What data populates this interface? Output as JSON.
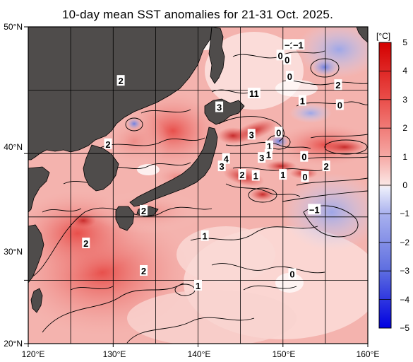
{
  "title": "10-day mean SST anomalies for 21-31 Oct. 2025.",
  "axes": {
    "lat_labels": [
      "50°N",
      "40°N",
      "30°N",
      "20°N"
    ],
    "lon_labels": [
      "120°E",
      "130°E",
      "140°E",
      "150°E",
      "160°E"
    ]
  },
  "colorbar": {
    "unit": "[°C]",
    "ticks": [
      "5",
      "4",
      "3",
      "2",
      "1",
      "0",
      "−1",
      "−2",
      "−3",
      "−4",
      "−5"
    ]
  },
  "contour_labels": [
    {
      "text": "−1",
      "lon": 150.8,
      "lat": 48.3
    },
    {
      "text": "−1",
      "lon": 151.8,
      "lat": 48.3
    },
    {
      "text": "0",
      "lon": 149.7,
      "lat": 47.3
    },
    {
      "text": "0",
      "lon": 150.5,
      "lat": 46.9
    },
    {
      "text": "0",
      "lon": 150.8,
      "lat": 45.3
    },
    {
      "text": "2",
      "lon": 156.5,
      "lat": 44.5
    },
    {
      "text": "2",
      "lon": 130.9,
      "lat": 44.9
    },
    {
      "text": "11",
      "lon": 146.6,
      "lat": 43.7
    },
    {
      "text": "1",
      "lon": 152.3,
      "lat": 43.0
    },
    {
      "text": "0",
      "lon": 156.7,
      "lat": 42.6
    },
    {
      "text": "3",
      "lon": 142.5,
      "lat": 42.4
    },
    {
      "text": "3",
      "lon": 146.3,
      "lat": 39.8
    },
    {
      "text": "0",
      "lon": 149.5,
      "lat": 40.0
    },
    {
      "text": "2",
      "lon": 129.4,
      "lat": 38.9
    },
    {
      "text": "1",
      "lon": 148.4,
      "lat": 38.7
    },
    {
      "text": "1",
      "lon": 148.3,
      "lat": 37.9
    },
    {
      "text": "4",
      "lon": 143.3,
      "lat": 37.5
    },
    {
      "text": "3",
      "lon": 147.5,
      "lat": 37.6
    },
    {
      "text": "0",
      "lon": 152.5,
      "lat": 37.7
    },
    {
      "text": "3",
      "lon": 142.8,
      "lat": 36.8
    },
    {
      "text": "2",
      "lon": 155.1,
      "lat": 36.8
    },
    {
      "text": "2",
      "lon": 145.2,
      "lat": 36.0
    },
    {
      "text": "1",
      "lon": 146.8,
      "lat": 35.9
    },
    {
      "text": "1",
      "lon": 150.0,
      "lat": 36.0
    },
    {
      "text": "0",
      "lon": 152.6,
      "lat": 35.8
    },
    {
      "text": "2",
      "lon": 133.6,
      "lat": 32.6
    },
    {
      "text": "−1",
      "lon": 153.7,
      "lat": 32.7
    },
    {
      "text": "1",
      "lon": 140.8,
      "lat": 30.2
    },
    {
      "text": "2",
      "lon": 126.8,
      "lat": 29.5
    },
    {
      "text": "2",
      "lon": 133.6,
      "lat": 26.9
    },
    {
      "text": "0",
      "lon": 151.1,
      "lat": 26.6
    },
    {
      "text": "1",
      "lon": 140.0,
      "lat": 25.5
    }
  ]
}
